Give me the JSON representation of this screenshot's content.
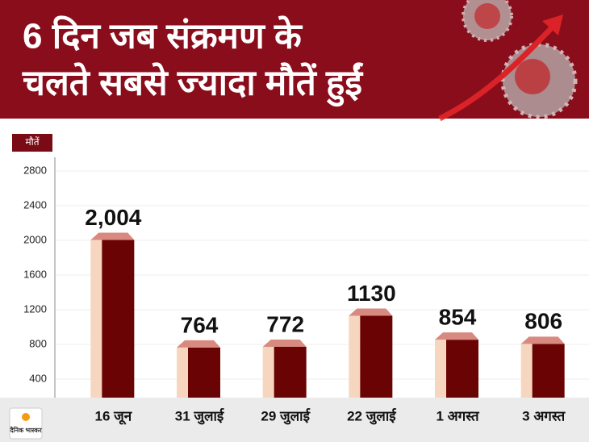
{
  "chart_data": {
    "type": "bar3d",
    "title": [
      "6 दिन जब संक्रमण के",
      "चलते सबसे ज्यादा मौतें हुईं"
    ],
    "y_label": "मौतें",
    "categories": [
      "16 जून",
      "31 जुलाई",
      "29 जुलाई",
      "22 जुलाई",
      "1 अगस्त",
      "3 अगस्त"
    ],
    "values": [
      2004,
      764,
      772,
      1130,
      854,
      806
    ],
    "value_labels": [
      "2,004",
      "764",
      "772",
      "1130",
      "854",
      "806"
    ],
    "colors": {
      "front": "#6a0303",
      "side": "#f7d6c0",
      "top": "#d98a80"
    },
    "ylim": [
      200,
      2900
    ],
    "yticks": [
      400,
      800,
      1200,
      1600,
      2000,
      2400,
      2800
    ],
    "grid": true,
    "logo": "दैनिक भास्कर"
  }
}
